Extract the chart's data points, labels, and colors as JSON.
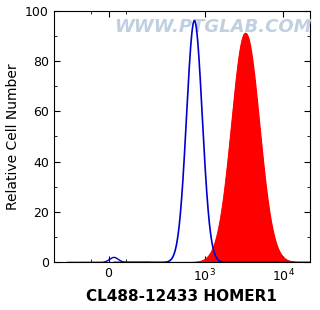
{
  "xlabel": "CL488-12433 HOMER1",
  "ylabel": "Relative Cell Number",
  "ylim": [
    0,
    100
  ],
  "yticks": [
    0,
    20,
    40,
    60,
    80,
    100
  ],
  "watermark": "WWW.PTGLAB.COM",
  "watermark_color": "#c0d0e0",
  "blue_peak_log": 2.87,
  "blue_sigma_log": 0.1,
  "blue_height": 96,
  "red_peak_log": 3.52,
  "red_sigma_log": 0.175,
  "red_height": 91,
  "blue_color": "#0000cc",
  "red_color": "#ff0000",
  "bg_color": "#ffffff",
  "xlabel_fontsize": 11,
  "ylabel_fontsize": 10,
  "tick_fontsize": 9,
  "watermark_fontsize": 13,
  "linthresh": 100,
  "linscale": 0.2,
  "xlim_min": -300,
  "xlim_max": 22000,
  "noise_x": 30,
  "noise_sigma": 25,
  "noise_height": 2.0
}
